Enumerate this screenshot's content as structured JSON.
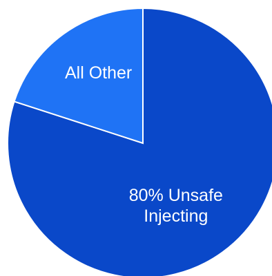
{
  "chart_data": {
    "type": "pie",
    "slices": [
      {
        "value": 80,
        "label_lines": [
          "80% Unsafe",
          "Injecting"
        ],
        "color": "#0A48C9"
      },
      {
        "value": 20,
        "label_lines": [
          "All Other"
        ],
        "color": "#1F73F5"
      }
    ],
    "slice_border_color": "#ffffff",
    "start": "12 o'clock",
    "direction": "clockwise"
  }
}
